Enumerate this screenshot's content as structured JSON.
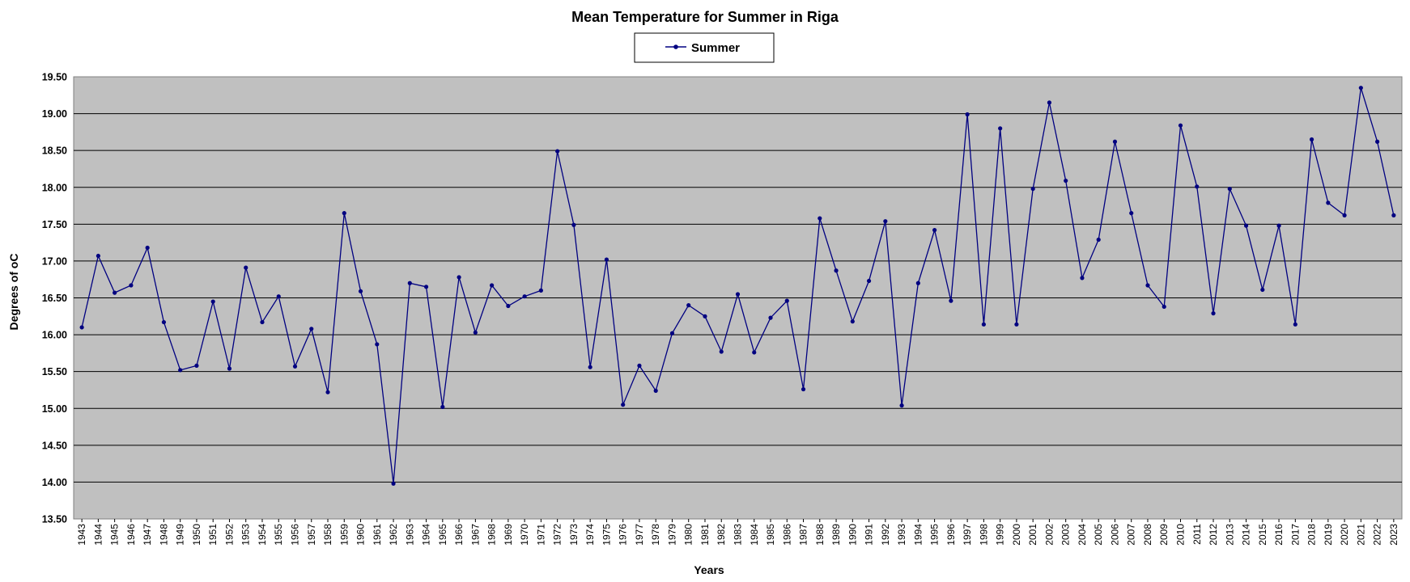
{
  "chart_data": {
    "type": "line",
    "title": "Mean Temperature for Summer in Riga",
    "xlabel": "Years",
    "ylabel": "Degrees of  oC",
    "ylim": [
      13.5,
      19.5
    ],
    "ytick_step": 0.5,
    "grid": true,
    "legend": "top-center",
    "colors": {
      "line": "#000080",
      "plot_background": "#c0c0c0",
      "grid": "#000000"
    },
    "x": [
      "1943",
      "1944",
      "1945",
      "1946",
      "1947",
      "1948",
      "1949",
      "1950",
      "1951",
      "1952",
      "1953",
      "1954",
      "1955",
      "1956",
      "1957",
      "1958",
      "1959",
      "1960",
      "1961",
      "1962",
      "1963",
      "1964",
      "1965",
      "1966",
      "1967",
      "1968",
      "1969",
      "1970",
      "1971",
      "1972",
      "1973",
      "1974",
      "1975",
      "1976",
      "1977",
      "1978",
      "1979",
      "1980",
      "1981",
      "1982",
      "1983",
      "1984",
      "1985",
      "1986",
      "1987",
      "1988",
      "1989",
      "1990",
      "1991",
      "1992",
      "1993",
      "1994",
      "1995",
      "1996",
      "1997",
      "1998",
      "1999",
      "2000",
      "2001",
      "2002",
      "2003",
      "2004",
      "2005",
      "2006",
      "2007",
      "2008",
      "2009",
      "2010",
      "2011",
      "2012",
      "2013",
      "2014",
      "2015",
      "2016",
      "2017",
      "2018",
      "2019",
      "2020",
      "2021",
      "2022",
      "2023"
    ],
    "series": [
      {
        "name": "Summer",
        "values": [
          16.1,
          17.07,
          16.57,
          16.67,
          17.18,
          16.17,
          15.52,
          15.58,
          16.45,
          15.54,
          16.91,
          16.17,
          16.52,
          15.57,
          16.08,
          15.22,
          17.65,
          16.59,
          15.87,
          13.98,
          16.7,
          16.65,
          15.02,
          16.78,
          16.03,
          16.67,
          16.39,
          16.52,
          16.6,
          18.49,
          17.49,
          15.56,
          17.02,
          15.05,
          15.58,
          15.24,
          16.02,
          16.4,
          16.25,
          15.77,
          16.55,
          15.76,
          16.23,
          16.46,
          15.26,
          17.58,
          16.87,
          16.18,
          16.73,
          17.54,
          15.04,
          16.7,
          17.42,
          16.46,
          18.99,
          16.14,
          18.8,
          16.14,
          17.98,
          19.15,
          18.09,
          16.77,
          17.29,
          18.62,
          17.65,
          16.67,
          16.38,
          18.84,
          18.01,
          16.29,
          17.98,
          17.48,
          16.61,
          17.48,
          16.14,
          18.65,
          17.79,
          17.62,
          19.35,
          18.62,
          17.62
        ]
      }
    ]
  }
}
